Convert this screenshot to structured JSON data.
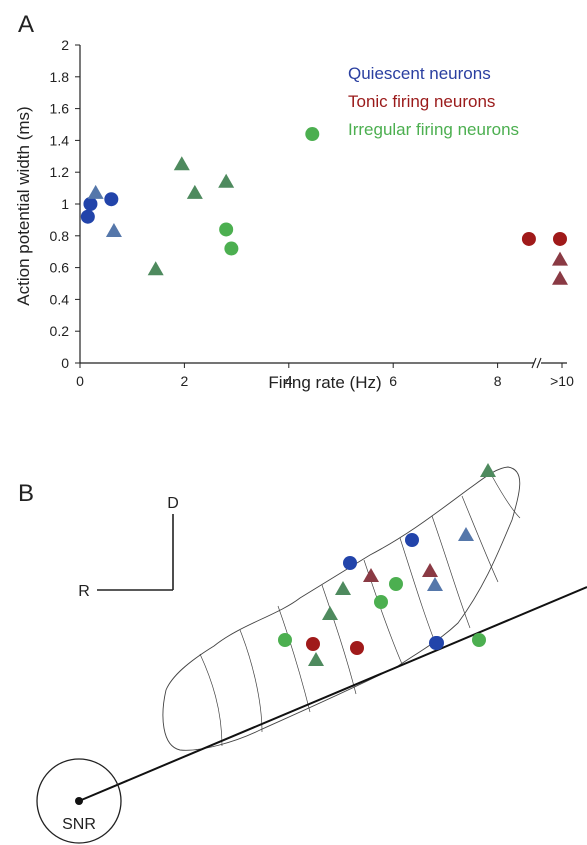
{
  "panel_a": {
    "letter": "A"
  },
  "panel_b": {
    "letter": "B",
    "orientation": {
      "dorsal_label": "D",
      "rostral_label": "R"
    },
    "origin_label": "SNR",
    "points": [
      {
        "group": "irregular",
        "shape": "triangle"
      },
      {
        "group": "quiescent",
        "shape": "circle"
      },
      {
        "group": "quiescent",
        "shape": "triangle"
      },
      {
        "group": "quiescent",
        "shape": "circle"
      },
      {
        "group": "tonic",
        "shape": "triangle"
      },
      {
        "group": "tonic",
        "shape": "triangle"
      },
      {
        "group": "quiescent",
        "shape": "triangle"
      },
      {
        "group": "irregular",
        "shape": "triangle"
      },
      {
        "group": "irregular",
        "shape": "circle"
      },
      {
        "group": "irregular",
        "shape": "circle"
      },
      {
        "group": "irregular",
        "shape": "triangle"
      },
      {
        "group": "quiescent",
        "shape": "circle"
      },
      {
        "group": "irregular",
        "shape": "circle"
      },
      {
        "group": "irregular",
        "shape": "circle"
      },
      {
        "group": "tonic",
        "shape": "circle"
      },
      {
        "group": "irregular",
        "shape": "triangle"
      },
      {
        "group": "tonic",
        "shape": "circle"
      },
      {
        "group": "quiescent",
        "shape": "circle"
      }
    ]
  },
  "colors": {
    "quiescent_circle": "#2244aa",
    "quiescent_triangle": "#5577aa",
    "tonic_circle": "#a01a1a",
    "tonic_triangle": "#8a3a44",
    "irregular_circle": "#4caf50",
    "irregular_triangle": "#4e8a5e",
    "legend_quiescent": "#2a3fa0",
    "legend_tonic": "#9a1a1a",
    "legend_irregular": "#4caf50"
  },
  "chart_data": {
    "type": "scatter",
    "xlabel": "Firing rate (Hz)",
    "ylabel": "Action potential width (ms)",
    "xlim": [
      0,
      10
    ],
    "ylim": [
      0,
      2
    ],
    "x_ticks": [
      "0",
      "2",
      "4",
      "6",
      "8",
      ">10"
    ],
    "y_ticks": [
      "0",
      "0.2",
      "0.4",
      "0.6",
      "0.8",
      "1",
      "1.2",
      "1.4",
      "1.6",
      "1.8",
      "2"
    ],
    "axis_break": "between 8 and >10",
    "legend_position": "top-right",
    "grid": false,
    "series": [
      {
        "name": "Quiescent neurons",
        "key": "quiescent",
        "points": [
          {
            "x": 0.15,
            "y": 0.92,
            "marker": "circle"
          },
          {
            "x": 0.2,
            "y": 1.0,
            "marker": "circle"
          },
          {
            "x": 0.6,
            "y": 1.03,
            "marker": "circle"
          },
          {
            "x": 0.3,
            "y": 1.07,
            "marker": "triangle"
          },
          {
            "x": 0.65,
            "y": 0.83,
            "marker": "triangle"
          }
        ]
      },
      {
        "name": "Tonic firing neurons",
        "key": "tonic",
        "points": [
          {
            "x": 8.6,
            "y": 0.78,
            "marker": "circle"
          },
          {
            "x": ">10",
            "y": 0.78,
            "marker": "circle"
          },
          {
            "x": ">10",
            "y": 0.65,
            "marker": "triangle"
          },
          {
            "x": ">10",
            "y": 0.53,
            "marker": "triangle"
          }
        ]
      },
      {
        "name": "Irregular firing neurons",
        "key": "irregular",
        "points": [
          {
            "x": 4.45,
            "y": 1.44,
            "marker": "circle"
          },
          {
            "x": 2.8,
            "y": 0.84,
            "marker": "circle"
          },
          {
            "x": 2.9,
            "y": 0.72,
            "marker": "circle"
          },
          {
            "x": 1.95,
            "y": 1.25,
            "marker": "triangle"
          },
          {
            "x": 2.2,
            "y": 1.07,
            "marker": "triangle"
          },
          {
            "x": 2.8,
            "y": 1.14,
            "marker": "triangle"
          },
          {
            "x": 1.45,
            "y": 0.59,
            "marker": "triangle"
          }
        ]
      }
    ]
  }
}
